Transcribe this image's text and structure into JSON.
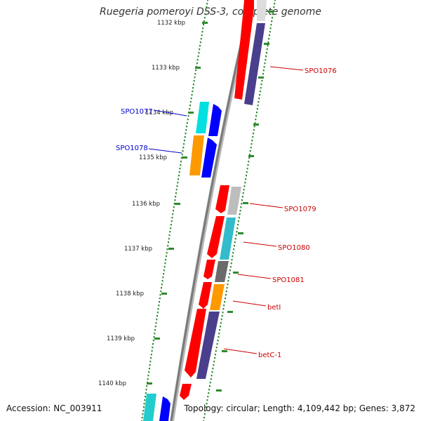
{
  "title": "Ruegeria pomeroyi DSS-3, complete genome",
  "footer": {
    "accession": "Accession: NC_003911",
    "stats": "Topology: circular; Length: 4,109,442 bp; Genes: 3,872"
  },
  "scale": {
    "ticks": [
      {
        "label": "1132 kbp",
        "kbp": 1132
      },
      {
        "label": "1133 kbp",
        "kbp": 1133
      },
      {
        "label": "1134 kbp",
        "kbp": 1134
      },
      {
        "label": "1135 kbp",
        "kbp": 1135
      },
      {
        "label": "1136 kbp",
        "kbp": 1136
      },
      {
        "label": "1137 kbp",
        "kbp": 1137
      },
      {
        "label": "1138 kbp",
        "kbp": 1138
      },
      {
        "label": "1139 kbp",
        "kbp": 1139
      },
      {
        "label": "1140 kbp",
        "kbp": 1140
      }
    ]
  },
  "colors": {
    "backbone": "#8c8c8c",
    "tick": "#2e8b2e",
    "cds": "#ff0000",
    "purple": "#4a3f8c",
    "blue": "#0000ff",
    "cyan": "#00e0e0",
    "orange": "#ff9900",
    "gray": "#bdbdbd",
    "darkgray": "#6b6b6b",
    "label_plus": "#cc0000",
    "label_minus": "#0000cc"
  },
  "gene_labels": [
    {
      "name": "SPO1076",
      "strand": "plus"
    },
    {
      "name": "SPO1077",
      "strand": "minus"
    },
    {
      "name": "SPO1078",
      "strand": "minus"
    },
    {
      "name": "SPO1079",
      "strand": "plus"
    },
    {
      "name": "SPO1080",
      "strand": "plus"
    },
    {
      "name": "SPO1081",
      "strand": "plus"
    },
    {
      "name": "betI",
      "strand": "plus"
    },
    {
      "name": "betC-1",
      "strand": "plus"
    }
  ]
}
